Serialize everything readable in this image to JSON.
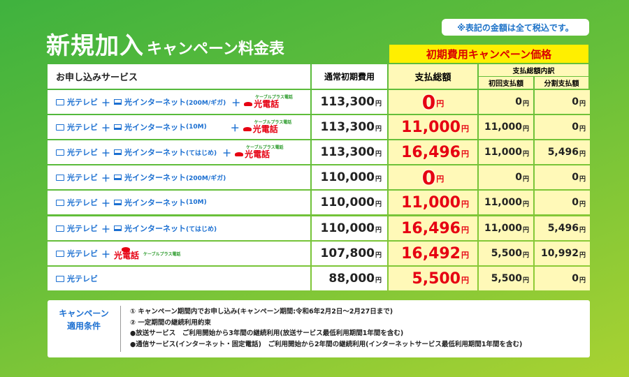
{
  "title_main": "新規加入",
  "title_sub": "キャンペーン料金表",
  "tax_note": "※表記の金額は全て税込です。",
  "headers": {
    "campaign": "初期費用キャンペーン価格",
    "services": "お申し込みサービス",
    "normal": "通常初期費用",
    "total": "支払総額",
    "breakdown": "支払総額内訳",
    "first": "初回支払額",
    "split": "分割支払額"
  },
  "yen": "円",
  "labels": {
    "tv": "光テレビ",
    "net": "光インターネット",
    "phone": "光電話",
    "cable_plus": "ケーブルプラス電話",
    "plus": "＋"
  },
  "rows": [
    {
      "net_plan": "(200M/ギガ)",
      "phone": true,
      "normal": "113,300",
      "total": "0",
      "first": "0",
      "split": "0"
    },
    {
      "net_plan": "(10M)",
      "phone": true,
      "normal": "113,300",
      "total": "11,000",
      "first": "11,000",
      "split": "0"
    },
    {
      "net_plan": "(てはじめ)",
      "phone": true,
      "normal": "113,300",
      "total": "16,496",
      "first": "11,000",
      "split": "5,496"
    },
    {
      "net_plan": "(200M/ギガ)",
      "phone": false,
      "normal": "110,000",
      "total": "0",
      "first": "0",
      "split": "0"
    },
    {
      "net_plan": "(10M)",
      "phone": false,
      "normal": "110,000",
      "total": "11,000",
      "first": "11,000",
      "split": "0"
    },
    {
      "net_plan": "(てはじめ)",
      "phone": false,
      "normal": "110,000",
      "total": "16,496",
      "first": "11,000",
      "split": "5,496"
    },
    {
      "net_plan": null,
      "phone": "inline",
      "normal": "107,800",
      "total": "16,492",
      "first": "5,500",
      "split": "10,992"
    },
    {
      "net_plan": null,
      "phone": false,
      "normal": "88,000",
      "total": "5,500",
      "first": "5,500",
      "split": "0"
    }
  ],
  "conditions": {
    "title_line1": "キャンペーン",
    "title_line2": "適用条件",
    "items": [
      "① キャンペーン期間内でお申し込み(キャンペーン期間:令和6年2月2日～2月27日まで)",
      "② 一定期間の継続利用約束",
      "●放送サービス　ご利用開始から3年間の継続利用(放送サービス最低利用期間1年間を含む)",
      "●通信サービス(インターネット・固定電話)　ご利用開始から2年間の継続利用(インターネットサービス最低利用期間1年間を含む)"
    ]
  }
}
